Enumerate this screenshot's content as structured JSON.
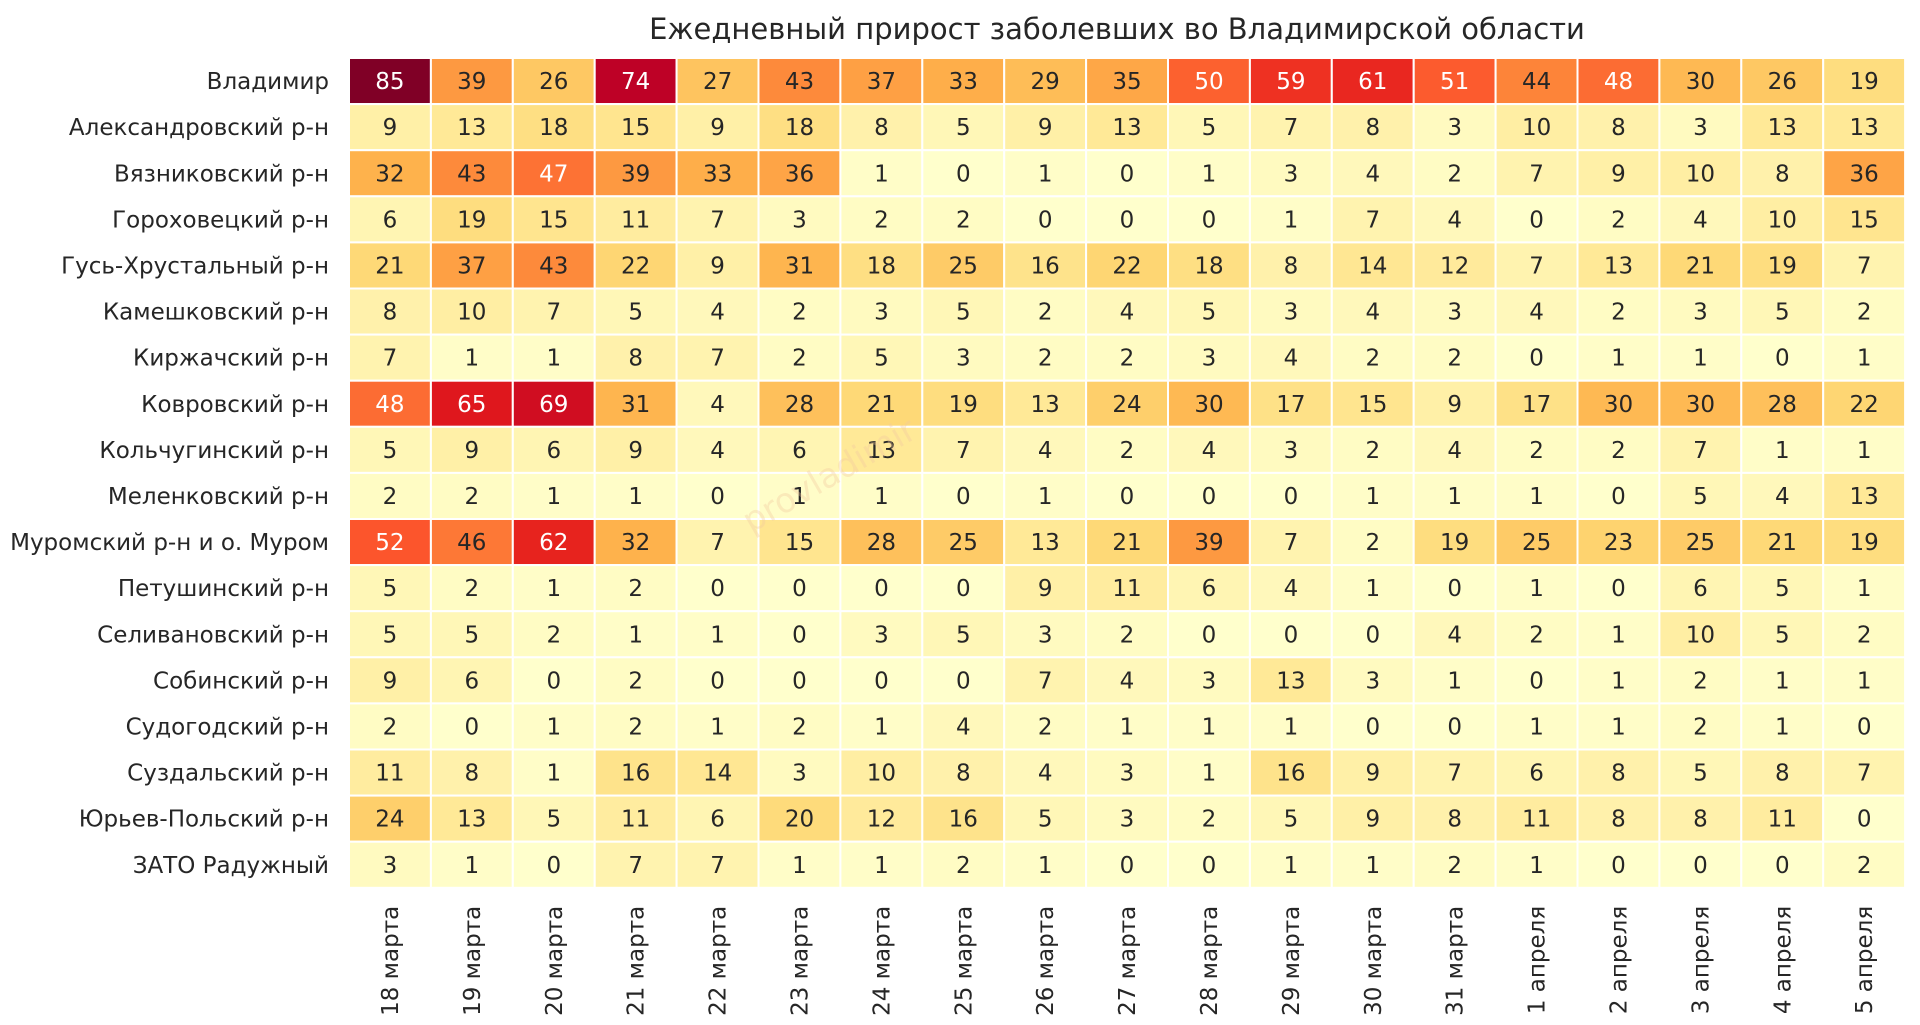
{
  "chart_data": {
    "type": "heatmap",
    "title": "Ежедневный прирост заболевших во Владимирской области",
    "watermark": "provladimir",
    "xlabel": "",
    "ylabel": "",
    "colormap": "YlOrRd",
    "value_range": [
      0,
      85
    ],
    "x": [
      "18 марта",
      "19 марта",
      "20 марта",
      "21 марта",
      "22 марта",
      "23 марта",
      "24 марта",
      "25 марта",
      "26 марта",
      "27 марта",
      "28 марта",
      "29 марта",
      "30 марта",
      "31 марта",
      "1 апреля",
      "2 апреля",
      "3 апреля",
      "4 апреля",
      "5 апреля"
    ],
    "y": [
      "Владимир",
      "Александровский р-н",
      "Вязниковский р-н",
      "Гороховецкий р-н",
      "Гусь-Хрустальный р-н",
      "Камешковский р-н",
      "Киржачский р-н",
      "Ковровский р-н",
      "Кольчугинский р-н",
      "Меленковский р-н",
      "Муромский р-н и о. Муром",
      "Петушинский р-н",
      "Селивановский р-н",
      "Собинский р-н",
      "Судогодский р-н",
      "Суздальский р-н",
      "Юрьев-Польский р-н",
      "ЗАТО Радужный"
    ],
    "values": [
      [
        85,
        39,
        26,
        74,
        27,
        43,
        37,
        33,
        29,
        35,
        50,
        59,
        61,
        51,
        44,
        48,
        30,
        26,
        19
      ],
      [
        9,
        13,
        18,
        15,
        9,
        18,
        8,
        5,
        9,
        13,
        5,
        7,
        8,
        3,
        10,
        8,
        3,
        13,
        13
      ],
      [
        32,
        43,
        47,
        39,
        33,
        36,
        1,
        0,
        1,
        0,
        1,
        3,
        4,
        2,
        7,
        9,
        10,
        8,
        36
      ],
      [
        6,
        19,
        15,
        11,
        7,
        3,
        2,
        2,
        0,
        0,
        0,
        1,
        7,
        4,
        0,
        2,
        4,
        10,
        15
      ],
      [
        21,
        37,
        43,
        22,
        9,
        31,
        18,
        25,
        16,
        22,
        18,
        8,
        14,
        12,
        7,
        13,
        21,
        19,
        7
      ],
      [
        8,
        10,
        7,
        5,
        4,
        2,
        3,
        5,
        2,
        4,
        5,
        3,
        4,
        3,
        4,
        2,
        3,
        5,
        2
      ],
      [
        7,
        1,
        1,
        8,
        7,
        2,
        5,
        3,
        2,
        2,
        3,
        4,
        2,
        2,
        0,
        1,
        1,
        0,
        1
      ],
      [
        48,
        65,
        69,
        31,
        4,
        28,
        21,
        19,
        13,
        24,
        30,
        17,
        15,
        9,
        17,
        30,
        30,
        28,
        22
      ],
      [
        5,
        9,
        6,
        9,
        4,
        6,
        13,
        7,
        4,
        2,
        4,
        3,
        2,
        4,
        2,
        2,
        7,
        1,
        1
      ],
      [
        2,
        2,
        1,
        1,
        0,
        1,
        1,
        0,
        1,
        0,
        0,
        0,
        1,
        1,
        1,
        0,
        5,
        4,
        13
      ],
      [
        52,
        46,
        62,
        32,
        7,
        15,
        28,
        25,
        13,
        21,
        39,
        7,
        2,
        19,
        25,
        23,
        25,
        21,
        19
      ],
      [
        5,
        2,
        1,
        2,
        0,
        0,
        0,
        0,
        9,
        11,
        6,
        4,
        1,
        0,
        1,
        0,
        6,
        5,
        1
      ],
      [
        5,
        5,
        2,
        1,
        1,
        0,
        3,
        5,
        3,
        2,
        0,
        0,
        0,
        4,
        2,
        1,
        10,
        5,
        2
      ],
      [
        9,
        6,
        0,
        2,
        0,
        0,
        0,
        0,
        7,
        4,
        3,
        13,
        3,
        1,
        0,
        1,
        2,
        1,
        1
      ],
      [
        2,
        0,
        1,
        2,
        1,
        2,
        1,
        4,
        2,
        1,
        1,
        1,
        0,
        0,
        1,
        1,
        2,
        1,
        0
      ],
      [
        11,
        8,
        1,
        16,
        14,
        3,
        10,
        8,
        4,
        3,
        1,
        16,
        9,
        7,
        6,
        8,
        5,
        8,
        7
      ],
      [
        24,
        13,
        5,
        11,
        6,
        20,
        12,
        16,
        5,
        3,
        2,
        5,
        9,
        8,
        11,
        8,
        8,
        11,
        0
      ],
      [
        3,
        1,
        0,
        7,
        7,
        1,
        1,
        2,
        1,
        0,
        0,
        1,
        1,
        2,
        1,
        0,
        0,
        0,
        2
      ]
    ]
  }
}
